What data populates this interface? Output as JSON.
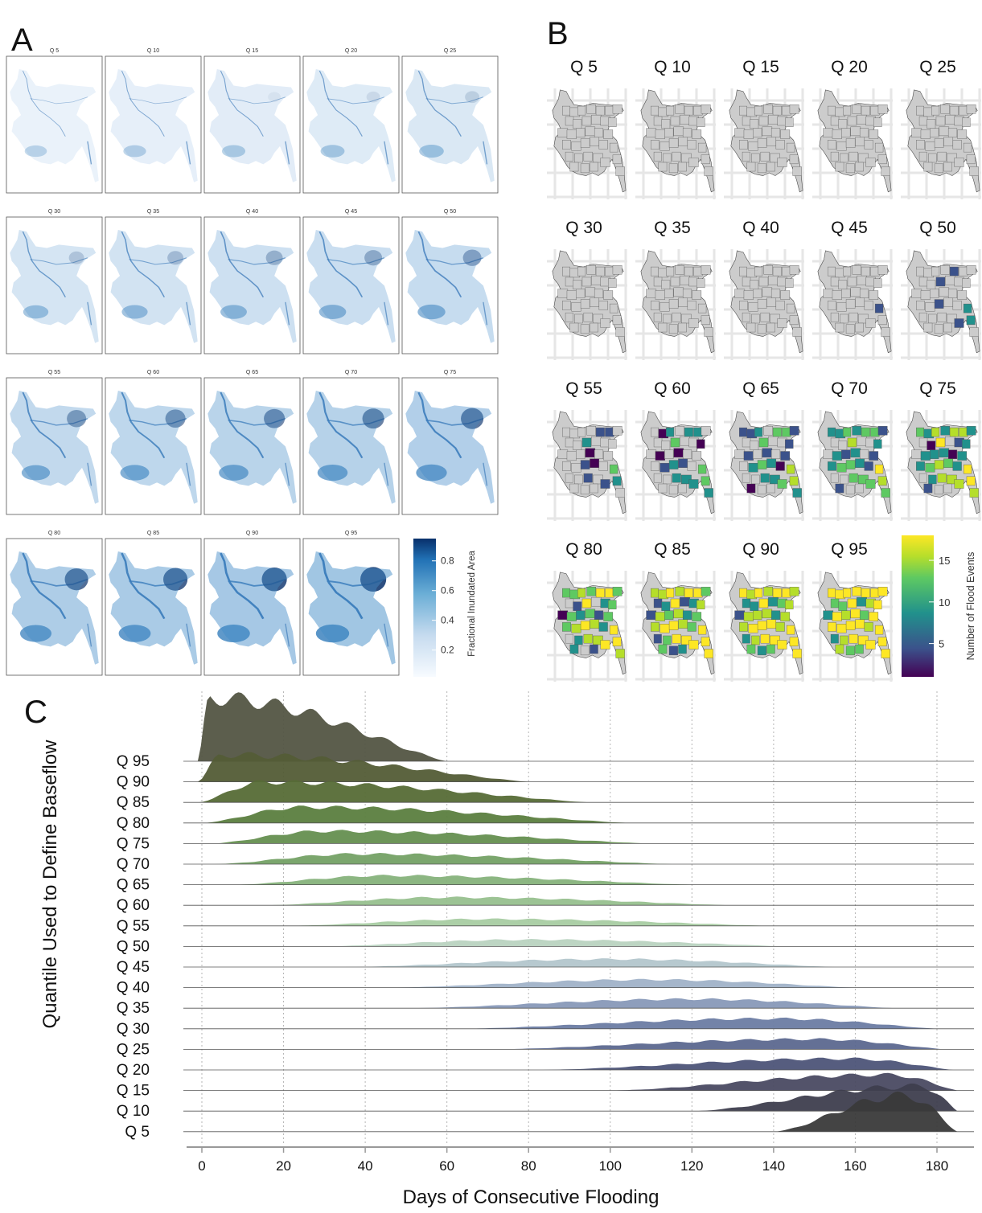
{
  "panels": {
    "a": "A",
    "b": "B",
    "c": "C"
  },
  "colors": {
    "map_a_light": "#eef4fb",
    "map_a_mid": "#6aa6d6",
    "map_a_dark": "#08306b",
    "map_b_grey": "#cccccc",
    "viridis": [
      "#440154",
      "#3b528b",
      "#21918c",
      "#5ec962",
      "#b5de2b",
      "#fde725"
    ],
    "grid_b": "#e6e6e6"
  },
  "panel_a": {
    "labels": [
      "Q 5",
      "Q 10",
      "Q 15",
      "Q 20",
      "Q 25",
      "Q 30",
      "Q 35",
      "Q 40",
      "Q 45",
      "Q 50",
      "Q 55",
      "Q 60",
      "Q 65",
      "Q 70",
      "Q 75",
      "Q 80",
      "Q 85",
      "Q 90",
      "Q 95"
    ],
    "colorbar_title": "Fractional Inundated Area",
    "colorbar_ticks": [
      "0.2",
      "0.4",
      "0.6",
      "0.8"
    ],
    "colorbar_tick_values": [
      0.2,
      0.4,
      0.6,
      0.8
    ],
    "colorbar_range": [
      0.02,
      0.95
    ]
  },
  "panel_b": {
    "labels": [
      "Q 5",
      "Q 10",
      "Q 15",
      "Q 20",
      "Q 25",
      "Q 30",
      "Q 35",
      "Q 40",
      "Q 45",
      "Q 50",
      "Q 55",
      "Q 60",
      "Q 65",
      "Q 70",
      "Q 75",
      "Q 80",
      "Q 85",
      "Q 90",
      "Q 95"
    ],
    "colorbar_title": "Number of Flood Events",
    "colorbar_ticks": [
      "5",
      "10",
      "15"
    ],
    "colorbar_tick_values": [
      5,
      10,
      15
    ],
    "colorbar_range": [
      1,
      18
    ]
  },
  "chart_data": {
    "type": "area",
    "subtype": "ridgeline",
    "xlabel": "Days of Consecutive Flooding",
    "ylabel": "Quantile Used to Define Baseflow",
    "xlim": [
      -5,
      190
    ],
    "x_ticks": [
      0,
      20,
      40,
      60,
      80,
      100,
      120,
      140,
      160,
      180
    ],
    "grid": "vertical-dotted",
    "series": [
      {
        "name": "Q 5",
        "color": "#3a3a3a",
        "range": [
          140,
          185
        ],
        "peak": 172,
        "height": 1.6
      },
      {
        "name": "Q 10",
        "color": "#3e3e4e",
        "range": [
          120,
          185
        ],
        "peak": 176,
        "height": 1.1
      },
      {
        "name": "Q 15",
        "color": "#4a4a62",
        "range": [
          100,
          185
        ],
        "peak": 168,
        "height": 0.7
      },
      {
        "name": "Q 20",
        "color": "#4d5478",
        "range": [
          82,
          184
        ],
        "peak": 158,
        "height": 0.5
      },
      {
        "name": "Q 25",
        "color": "#5c688f",
        "range": [
          70,
          182
        ],
        "peak": 150,
        "height": 0.45
      },
      {
        "name": "Q 30",
        "color": "#6c7ca3",
        "range": [
          62,
          180
        ],
        "peak": 140,
        "height": 0.45
      },
      {
        "name": "Q 35",
        "color": "#8899b8",
        "range": [
          50,
          170
        ],
        "peak": 120,
        "height": 0.4
      },
      {
        "name": "Q 40",
        "color": "#a0b2c8",
        "range": [
          45,
          160
        ],
        "peak": 110,
        "height": 0.35
      },
      {
        "name": "Q 45",
        "color": "#b3c6cc",
        "range": [
          35,
          155
        ],
        "peak": 100,
        "height": 0.35
      },
      {
        "name": "Q 50",
        "color": "#b9d3c0",
        "range": [
          28,
          145
        ],
        "peak": 80,
        "height": 0.3
      },
      {
        "name": "Q 55",
        "color": "#a8cca2",
        "range": [
          20,
          140
        ],
        "peak": 70,
        "height": 0.3
      },
      {
        "name": "Q 60",
        "color": "#97c08e",
        "range": [
          15,
          130
        ],
        "peak": 60,
        "height": 0.35
      },
      {
        "name": "Q 65",
        "color": "#86b27b",
        "range": [
          8,
          120
        ],
        "peak": 45,
        "height": 0.4
      },
      {
        "name": "Q 70",
        "color": "#74a165",
        "range": [
          3,
          115
        ],
        "peak": 38,
        "height": 0.45
      },
      {
        "name": "Q 75",
        "color": "#658f50",
        "range": [
          2,
          110
        ],
        "peak": 30,
        "height": 0.55
      },
      {
        "name": "Q 80",
        "color": "#5b7e3f",
        "range": [
          0,
          105
        ],
        "peak": 25,
        "height": 0.7
      },
      {
        "name": "Q 85",
        "color": "#566b36",
        "range": [
          -1,
          95
        ],
        "peak": 15,
        "height": 0.9
      },
      {
        "name": "Q 90",
        "color": "#535c36",
        "range": [
          -1,
          80
        ],
        "peak": 5,
        "height": 1.2
      },
      {
        "name": "Q 95",
        "color": "#535543",
        "range": [
          -1,
          60
        ],
        "peak": 2,
        "height": 2.8
      }
    ]
  }
}
